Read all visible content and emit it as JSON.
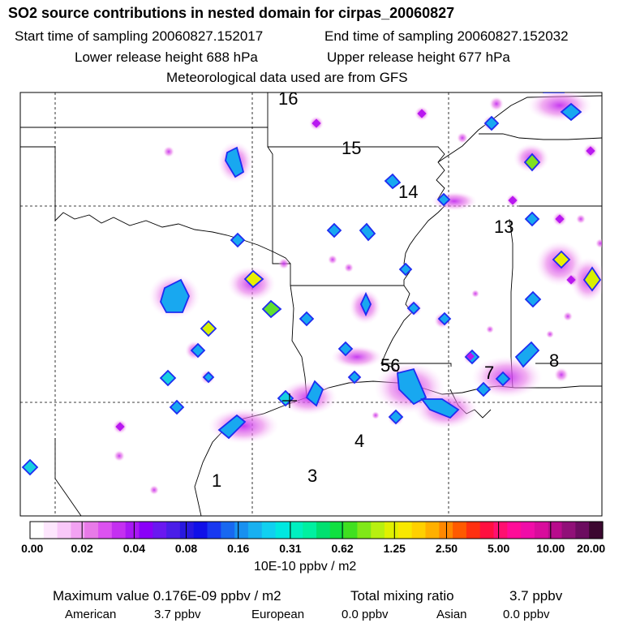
{
  "title": "SO2 source contributions in nested domain for cirpas_20060827",
  "header": {
    "start_time": "Start time of sampling 20060827.152017",
    "end_time": "End time of sampling 20060827.152032",
    "lower_release": "Lower release height  688 hPa",
    "upper_release": "Upper release height  677 hPa",
    "met_data": "Meteorological data used are from GFS"
  },
  "map": {
    "region_labels": [
      "16",
      "15",
      "14",
      "13",
      "56",
      "7",
      "8",
      "1",
      "3",
      "4"
    ],
    "colors": {
      "frame": "#000000",
      "background": "#ffffff"
    }
  },
  "colorbar": {
    "ticks": [
      "0.00",
      "0.02",
      "0.04",
      "0.08",
      "0.16",
      "0.31",
      "0.62",
      "1.25",
      "2.50",
      "5.00",
      "10.00",
      "20.00"
    ],
    "unit": "10E-10 ppbv / m2",
    "colors": [
      "#ffffff",
      "#fde6fd",
      "#f9c8f9",
      "#f2a2f2",
      "#e87ae8",
      "#dc52f0",
      "#c430f0",
      "#a818f4",
      "#8a00f8",
      "#6a18f0",
      "#4a1ee8",
      "#2818e0",
      "#1010e8",
      "#1838f0",
      "#1868f0",
      "#1890f0",
      "#18b0f0",
      "#10d0f0",
      "#00e8e0",
      "#00f0c0",
      "#00f0a0",
      "#00e070",
      "#10e040",
      "#40e020",
      "#80e818",
      "#b8f010",
      "#e0f000",
      "#f8e800",
      "#ffd000",
      "#ffb000",
      "#ff8800",
      "#ff5a00",
      "#ff3010",
      "#ff1040",
      "#ff1070",
      "#ff0c98",
      "#f00ca8",
      "#d80c9c",
      "#b80c8c",
      "#901078",
      "#6c0c60",
      "#3c0830"
    ]
  },
  "footer": {
    "max_value": "Maximum value  0.176E-09 ppbv / m2",
    "total_label": "Total mixing ratio",
    "total_value": "3.7 ppbv",
    "american_label": "American",
    "american_value": "3.7 ppbv",
    "european_label": "European",
    "european_value": "0.0 ppbv",
    "asian_label": "Asian",
    "asian_value": "0.0 ppbv"
  }
}
